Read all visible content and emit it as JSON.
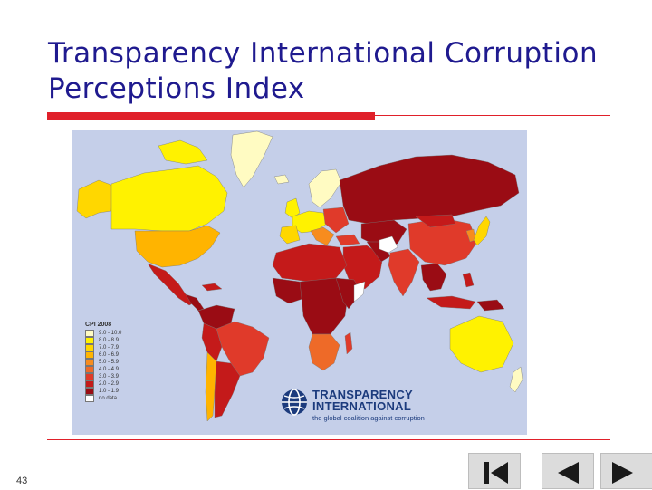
{
  "slide": {
    "title_line1": "Transparency International Corruption",
    "title_line2": "Perceptions Index",
    "page_number": "43"
  },
  "legend": {
    "title": "CPI 2008",
    "items": [
      {
        "label": "9.0 - 10.0",
        "color": "#fffbc2"
      },
      {
        "label": "8.0 - 8.9",
        "color": "#fff200"
      },
      {
        "label": "7.0 - 7.9",
        "color": "#ffd700"
      },
      {
        "label": "6.0 - 6.9",
        "color": "#ffb400"
      },
      {
        "label": "5.0 - 5.9",
        "color": "#f78c1e"
      },
      {
        "label": "4.0 - 4.9",
        "color": "#ee6a28"
      },
      {
        "label": "3.0 - 3.9",
        "color": "#e03a2a"
      },
      {
        "label": "2.0 - 2.9",
        "color": "#c41a1a"
      },
      {
        "label": "1.0 - 1.9",
        "color": "#9a0c14"
      },
      {
        "label": "no data",
        "color": "#ffffff"
      }
    ]
  },
  "logo": {
    "line1": "TRANSPARENCY",
    "line2": "INTERNATIONAL",
    "tagline": "the global coalition against corruption"
  },
  "colors": {
    "title_text": "#1f1a8f",
    "accent_red": "#e0202a",
    "ocean": "#c5cfe9"
  },
  "navigation": {
    "first_icon": "first-slide-icon",
    "prev_icon": "previous-slide-icon",
    "next_icon": "next-slide-icon"
  }
}
